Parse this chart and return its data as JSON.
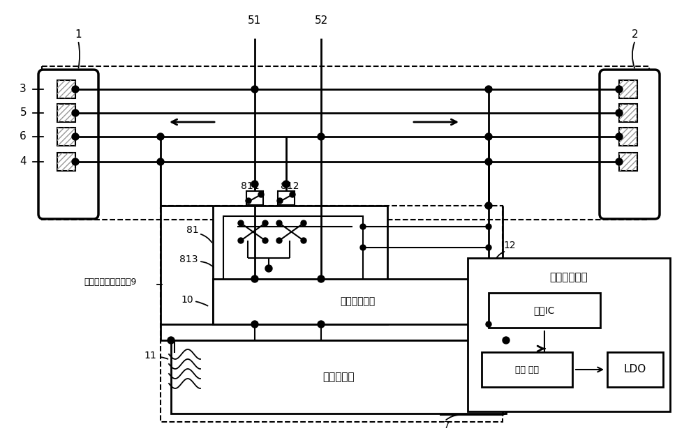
{
  "bg_color": "#ffffff",
  "line_color": "#000000",
  "label_9": "测温信道开关控制器9",
  "label_cewendu": "测温读取单元",
  "label_cewenchuanganqi": "测温传感器",
  "label_dianyuan": "电源管理单元",
  "label_chongdianIC": "充电IC",
  "label_chongdiandianchi": "充电 电池",
  "label_LDO": "LDO",
  "figw": 10.0,
  "figh": 6.31,
  "dpi": 100
}
